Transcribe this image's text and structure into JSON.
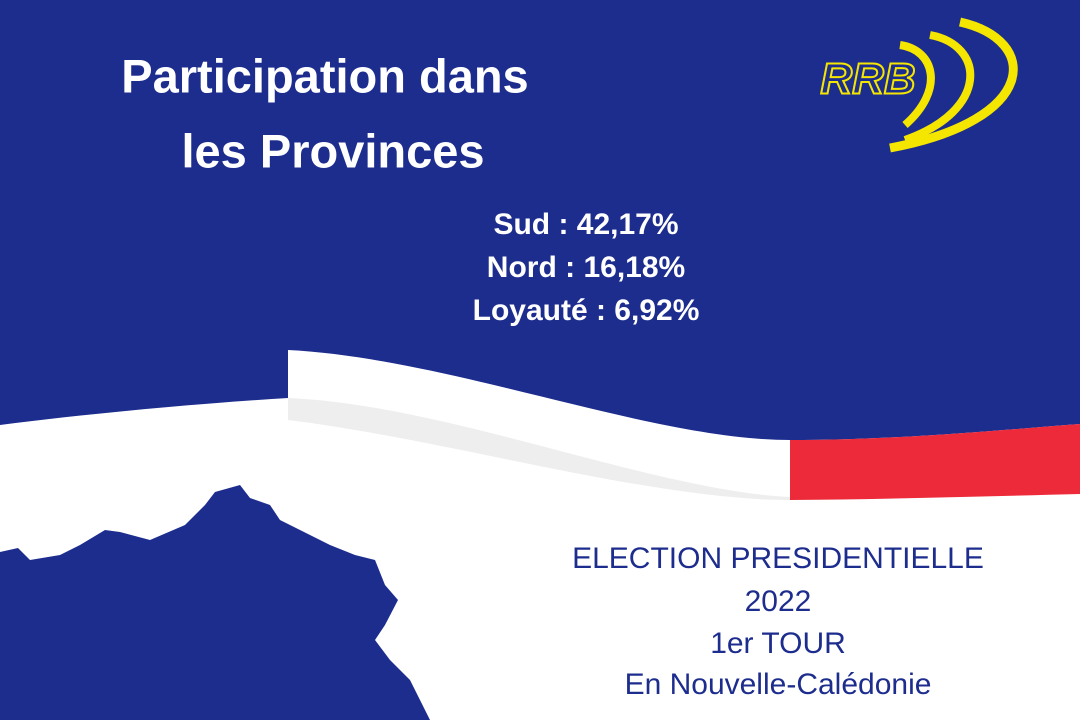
{
  "header": {
    "title_lines": [
      "Participation dans",
      "les Provinces"
    ],
    "logo": "RRB"
  },
  "results": [
    "Sud : 42,17%",
    "Nord : 16,18%",
    "Loyauté : 6,92%"
  ],
  "footer": {
    "lines": [
      "ELECTION PRESIDENTIELLE",
      "2022",
      "1er TOUR",
      "En Nouvelle-Calédonie"
    ]
  }
}
